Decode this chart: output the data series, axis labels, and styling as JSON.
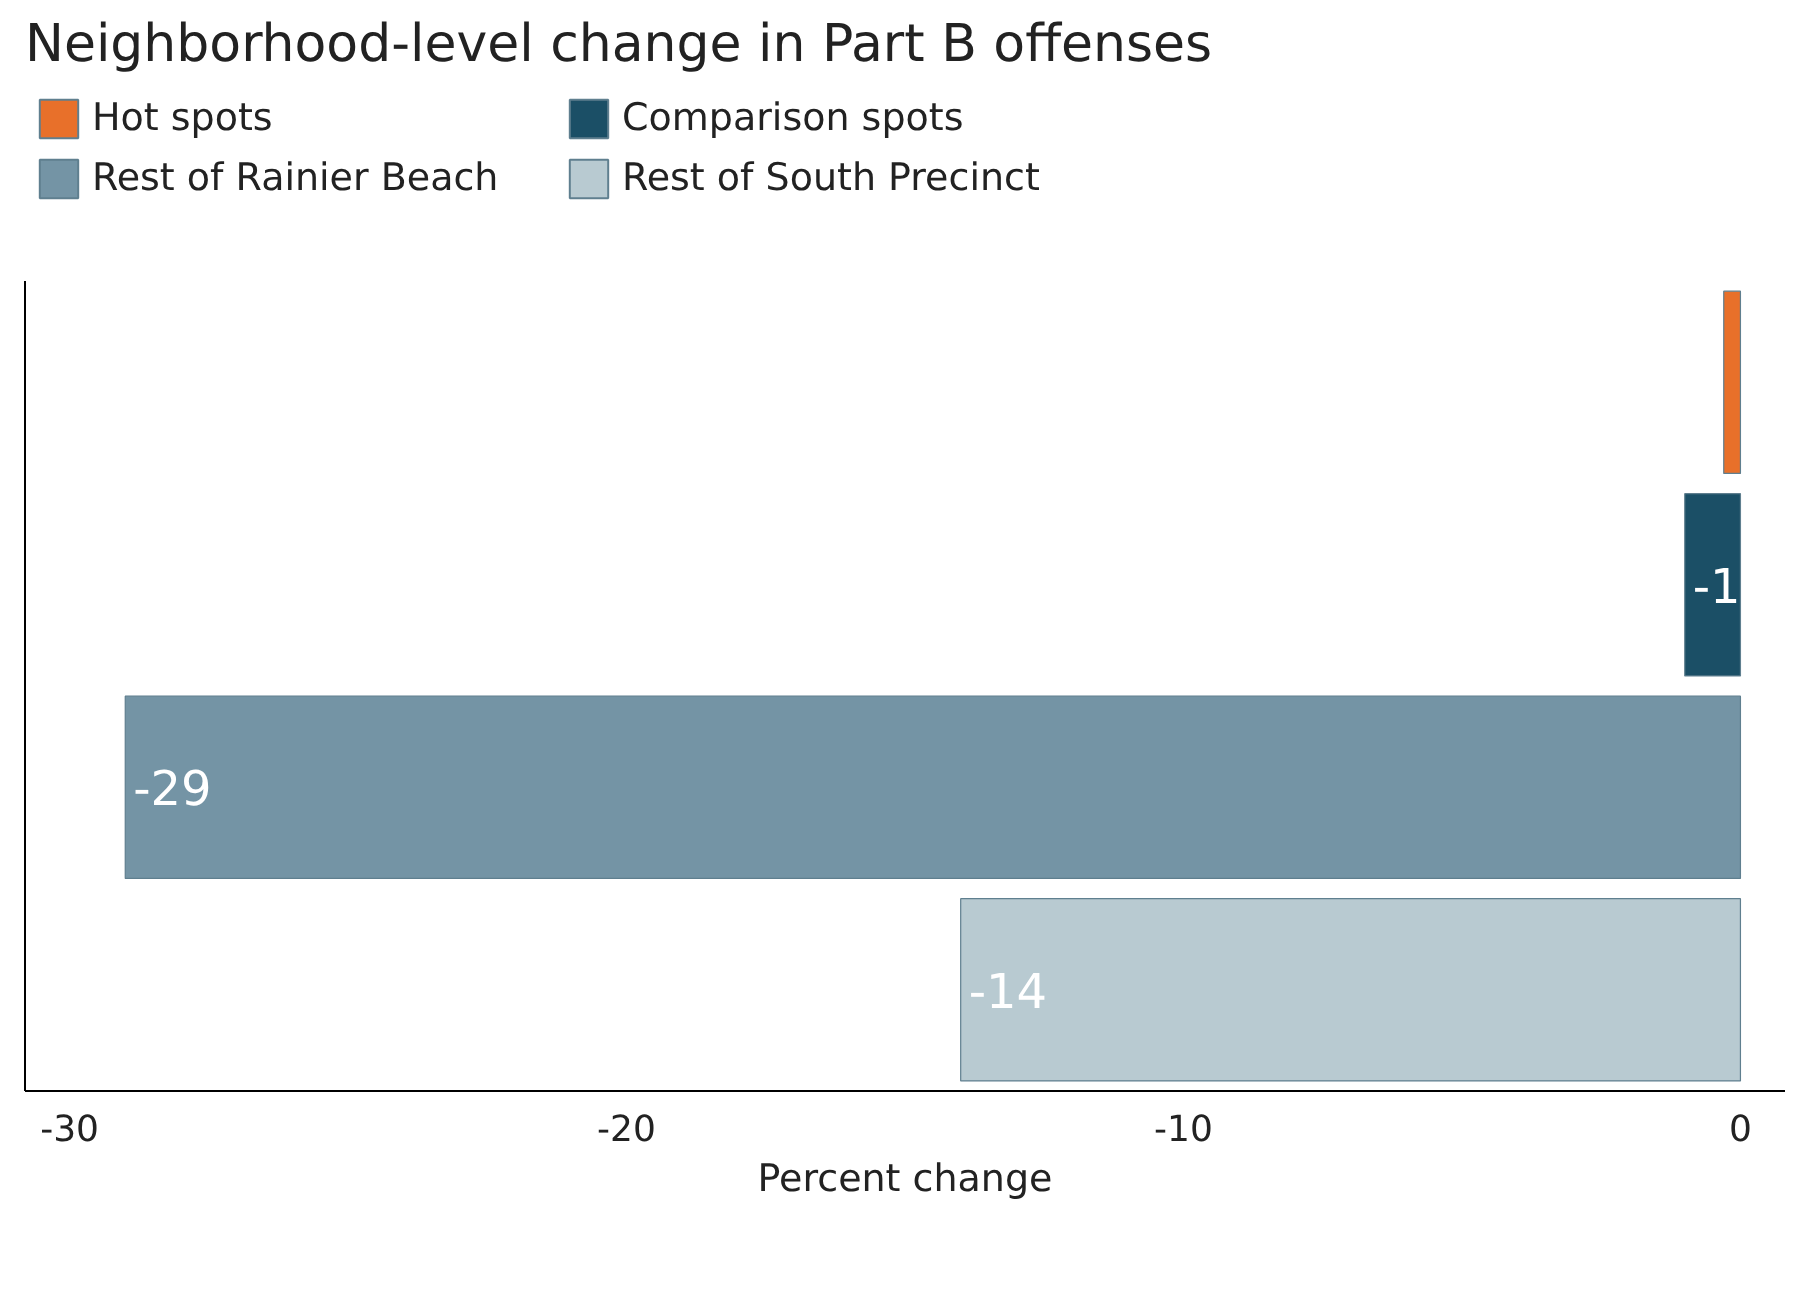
{
  "chart_data": {
    "type": "bar",
    "orientation": "horizontal",
    "title": "Neighborhood-level change in Part B offenses",
    "xlabel": "Percent change",
    "categories": [
      null,
      null,
      null,
      null
    ],
    "series": [
      {
        "name": "Hot spots",
        "color": "#e8702a",
        "values": [
          -0.3,
          null,
          null,
          null
        ],
        "value_labels": [
          null,
          null,
          null,
          null
        ]
      },
      {
        "name": "Comparison spots",
        "color": "#1b4f66",
        "values": [
          null,
          -1,
          null,
          null
        ],
        "value_labels": [
          null,
          "-1",
          null,
          null
        ]
      },
      {
        "name": "Rest of Rainier Beach",
        "color": "#7494a5",
        "values": [
          null,
          null,
          -29,
          null
        ],
        "value_labels": [
          null,
          null,
          "-29",
          null
        ]
      },
      {
        "name": "Rest of South Precinct",
        "color": "#b8cad1",
        "values": [
          null,
          null,
          null,
          -14
        ],
        "value_labels": [
          null,
          null,
          null,
          "-14"
        ]
      }
    ],
    "xlim": [
      -30.8,
      0.8
    ],
    "xticks": [
      -30,
      -20,
      -10,
      0
    ],
    "grid": false,
    "legend": "top left"
  }
}
